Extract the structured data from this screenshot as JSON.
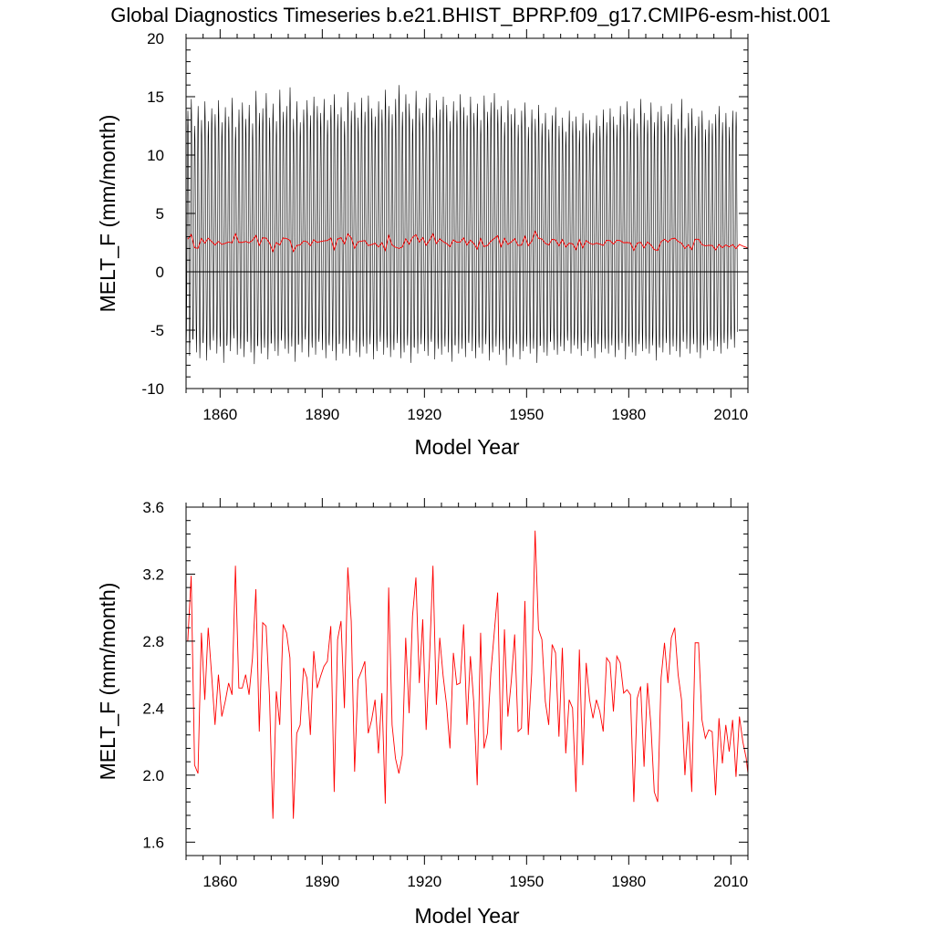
{
  "title": "Global Diagnostics Timeseries b.e21.BHIST_BPRP.f09_g17.CMIP6-esm-hist.001",
  "colors": {
    "monthly": "#000000",
    "annual": "#ff0000",
    "axes": "#000000"
  },
  "chart_data": [
    {
      "type": "line",
      "ylabel": "MELT_F (mm/month)",
      "xlabel": "Model Year",
      "xlim": [
        1850,
        2015
      ],
      "ylim": [
        -10,
        20
      ],
      "xticks": [
        1860,
        1890,
        1920,
        1950,
        1980,
        2010
      ],
      "xtick_labels": [
        "1860",
        "1890",
        "1920",
        "1950",
        "1980",
        "2010"
      ],
      "yticks": [
        -10,
        -5,
        0,
        5,
        10,
        15,
        20
      ],
      "ytick_labels": [
        "-10",
        "-5",
        "0",
        "5",
        "10",
        "15",
        "20"
      ],
      "zero_line": true,
      "series": [
        {
          "key": "monthly",
          "resolution": "monthly",
          "color": "#000000",
          "start_year": 1850,
          "months_per_year": 12,
          "annual_max": [
            13.8,
            14.8,
            12.5,
            14.2,
            13.0,
            14.6,
            12.9,
            14.0,
            13.5,
            14.7,
            12.8,
            14.1,
            13.3,
            14.9,
            12.4,
            13.9,
            14.5,
            13.1,
            14.3,
            12.7,
            15.5,
            13.6,
            14.0,
            15.3,
            13.2,
            14.4,
            12.9,
            15.6,
            13.7,
            14.2,
            15.8,
            13.1,
            14.6,
            12.8,
            13.9,
            14.7,
            13.4,
            15.0,
            14.2,
            13.6,
            14.8,
            13.0,
            14.3,
            15.2,
            13.5,
            14.1,
            12.9,
            15.4,
            13.8,
            14.5,
            13.2,
            14.9,
            13.7,
            15.1,
            14.0,
            13.3,
            14.6,
            13.9,
            15.6,
            14.2,
            13.5,
            14.8,
            16.0,
            13.7,
            15.2,
            14.4,
            13.1,
            15.5,
            14.0,
            13.6,
            14.9,
            15.3,
            13.2,
            14.7,
            13.9,
            15.0,
            14.3,
            12.9,
            14.6,
            13.8,
            15.2,
            14.1,
            13.4,
            15.0,
            13.6,
            14.4,
            13.0,
            15.1,
            13.7,
            14.5,
            15.3,
            13.9,
            14.2,
            12.8,
            14.7,
            13.5,
            14.0,
            12.6,
            13.8,
            14.5,
            12.4,
            13.9,
            13.1,
            14.3,
            12.7,
            13.6,
            12.2,
            13.4,
            14.1,
            12.5,
            13.2,
            12.0,
            13.8,
            12.9,
            13.3,
            12.1,
            13.6,
            12.7,
            13.0,
            11.9,
            13.4,
            12.5,
            13.9,
            12.8,
            14.0,
            13.3,
            12.6,
            14.2,
            13.5,
            14.6,
            13.1,
            14.0,
            12.7,
            14.8,
            13.6,
            13.0,
            14.5,
            12.8,
            13.7,
            14.2,
            12.9,
            13.5,
            14.4,
            12.6,
            13.1,
            14.8,
            12.3,
            13.6,
            14.0,
            12.5,
            13.3,
            13.8,
            12.2,
            13.0,
            12.7,
            13.5,
            14.2,
            12.8,
            13.6,
            12.4,
            13.8,
            13.7
          ],
          "annual_min": [
            -6.5,
            -7.2,
            -5.8,
            -6.9,
            -7.4,
            -6.1,
            -7.6,
            -6.7,
            -5.9,
            -7.0,
            -6.4,
            -7.8,
            -6.2,
            -6.8,
            -5.7,
            -7.1,
            -6.6,
            -7.3,
            -6.0,
            -6.9,
            -7.9,
            -6.3,
            -7.0,
            -6.5,
            -7.5,
            -6.1,
            -6.8,
            -7.2,
            -5.9,
            -6.6,
            -7.0,
            -6.4,
            -7.7,
            -6.2,
            -6.9,
            -5.8,
            -7.3,
            -6.5,
            -7.1,
            -6.0,
            -6.7,
            -7.4,
            -6.3,
            -6.8,
            -7.6,
            -6.1,
            -7.0,
            -6.6,
            -7.2,
            -5.9,
            -6.9,
            -7.3,
            -6.4,
            -7.0,
            -6.2,
            -7.5,
            -6.8,
            -6.0,
            -7.1,
            -6.5,
            -7.3,
            -6.7,
            -6.1,
            -7.4,
            -6.9,
            -6.3,
            -7.8,
            -6.5,
            -7.0,
            -6.2,
            -6.8,
            -7.2,
            -6.0,
            -7.5,
            -6.6,
            -7.1,
            -6.4,
            -6.9,
            -7.7,
            -6.3,
            -7.0,
            -6.6,
            -7.3,
            -6.1,
            -6.8,
            -7.4,
            -6.5,
            -7.0,
            -6.2,
            -7.6,
            -6.9,
            -6.4,
            -7.1,
            -6.7,
            -8.0,
            -6.6,
            -7.3,
            -6.2,
            -7.5,
            -6.8,
            -6.4,
            -7.0,
            -6.6,
            -7.8,
            -6.3,
            -6.9,
            -7.2,
            -6.0,
            -6.7,
            -7.1,
            -6.4,
            -6.8,
            -5.9,
            -7.0,
            -6.3,
            -6.6,
            -7.2,
            -6.1,
            -6.8,
            -6.5,
            -7.4,
            -6.2,
            -6.9,
            -6.6,
            -7.0,
            -6.3,
            -7.3,
            -6.7,
            -6.1,
            -7.5,
            -6.4,
            -6.9,
            -7.2,
            -6.2,
            -6.8,
            -6.6,
            -7.0,
            -6.3,
            -7.6,
            -6.5,
            -6.9,
            -6.1,
            -7.1,
            -6.4,
            -6.8,
            -7.3,
            -6.0,
            -6.6,
            -7.0,
            -6.2,
            -6.9,
            -7.4,
            -6.3,
            -6.7,
            -5.9,
            -6.8,
            -6.4,
            -7.0,
            -6.1,
            -6.6,
            -5.8,
            -6.5,
            -6.9,
            -6.2,
            -6.0,
            -5.9
          ]
        },
        {
          "key": "annual_top",
          "resolution": "annual",
          "color": "#ff0000",
          "source": "annual"
        }
      ]
    },
    {
      "type": "line",
      "ylabel": "MELT_F (mm/month)",
      "xlabel": "Model Year",
      "xlim": [
        1850,
        2015
      ],
      "ylim": [
        1.52,
        3.6
      ],
      "xticks": [
        1860,
        1890,
        1920,
        1950,
        1980,
        2010
      ],
      "xtick_labels": [
        "1860",
        "1890",
        "1920",
        "1950",
        "1980",
        "2010"
      ],
      "yticks": [
        1.6,
        2.0,
        2.4,
        2.8,
        3.2,
        3.6
      ],
      "ytick_labels": [
        "1.6",
        "2.0",
        "2.4",
        "2.8",
        "3.2",
        "3.6"
      ],
      "series": [
        {
          "key": "annual",
          "resolution": "annual",
          "color": "#ff0000",
          "start_year": 1850,
          "values": [
            2.8,
            3.19,
            2.06,
            2.01,
            2.85,
            2.45,
            2.88,
            2.6,
            2.3,
            2.6,
            2.35,
            2.44,
            2.55,
            2.48,
            3.25,
            2.52,
            2.52,
            2.6,
            2.48,
            2.7,
            3.11,
            2.26,
            2.91,
            2.89,
            2.47,
            1.74,
            2.5,
            2.3,
            2.9,
            2.85,
            2.7,
            1.74,
            2.25,
            2.3,
            2.64,
            2.58,
            2.24,
            2.74,
            2.52,
            2.59,
            2.65,
            2.68,
            2.89,
            1.9,
            2.81,
            2.92,
            2.4,
            3.24,
            2.92,
            2.02,
            2.57,
            2.62,
            2.68,
            2.25,
            2.33,
            2.45,
            2.13,
            2.49,
            1.83,
            3.12,
            2.3,
            2.1,
            2.01,
            2.12,
            2.82,
            2.37,
            2.95,
            3.18,
            2.55,
            2.93,
            2.27,
            2.7,
            3.25,
            2.42,
            2.82,
            2.59,
            2.42,
            2.16,
            2.73,
            2.54,
            2.55,
            2.9,
            2.3,
            2.71,
            2.43,
            1.94,
            2.85,
            2.16,
            2.25,
            2.61,
            2.85,
            3.09,
            2.15,
            2.87,
            2.35,
            2.56,
            2.84,
            2.26,
            2.28,
            3.04,
            2.24,
            2.61,
            3.46,
            2.87,
            2.81,
            2.44,
            2.3,
            2.78,
            2.73,
            2.23,
            2.76,
            2.13,
            2.45,
            2.4,
            1.9,
            2.75,
            2.06,
            2.67,
            2.45,
            2.34,
            2.45,
            2.38,
            2.26,
            2.7,
            2.67,
            2.38,
            2.71,
            2.67,
            2.49,
            2.51,
            2.48,
            1.84,
            2.46,
            2.53,
            2.05,
            2.55,
            2.3,
            1.9,
            1.84,
            2.58,
            2.79,
            2.55,
            2.82,
            2.88,
            2.6,
            2.45,
            2.0,
            2.32,
            1.9,
            2.79,
            2.79,
            2.33,
            2.22,
            2.27,
            2.26,
            1.88,
            2.34,
            2.07,
            2.3,
            2.14,
            2.33,
            1.99,
            2.35,
            2.2,
            2.1,
            1.92,
            2.27
          ]
        }
      ]
    }
  ]
}
